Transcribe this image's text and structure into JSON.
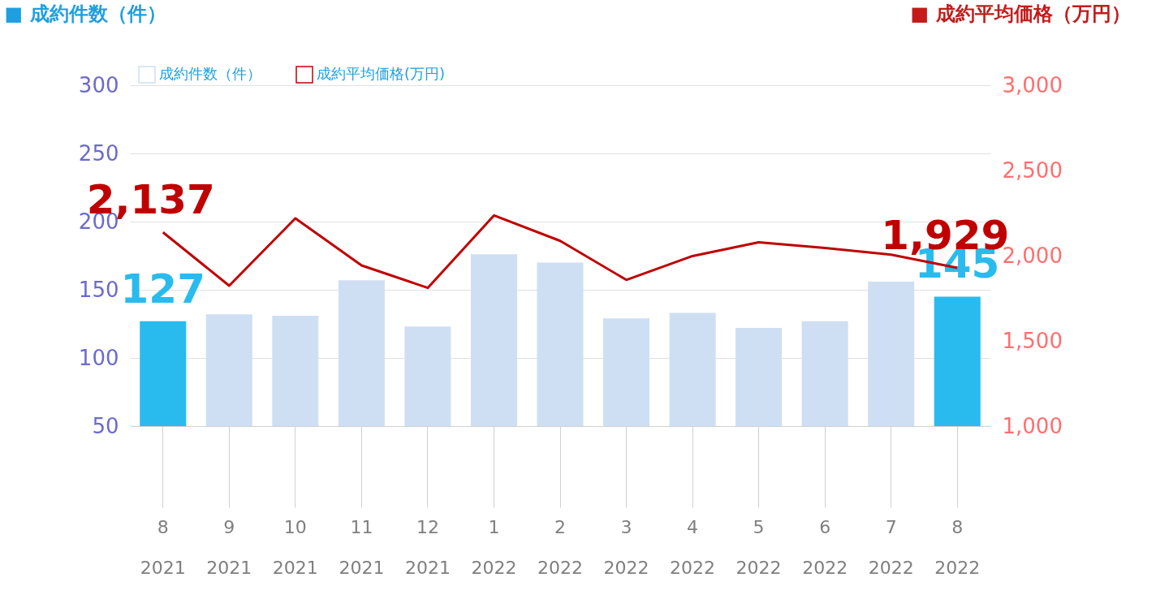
{
  "chart_data": {
    "type": "bar",
    "ylabel": "■ 成約件数（件）",
    "y2label": "■ 成約平均価格（万円）",
    "categories": [
      "8\n2021",
      "9\n2021",
      "10\n2021",
      "11\n2021",
      "12\n2021",
      "1\n2022",
      "2\n2022",
      "3\n2022",
      "4\n2022",
      "5\n2022",
      "6\n2022",
      "7\n2022",
      "8\n2022"
    ],
    "series": [
      {
        "name": "成約件数（件）",
        "color": "#cfdff3",
        "colors": [
          "#29bbee",
          "#cfdff3",
          "#cfdff3",
          "#cfdff3",
          "#cfdff3",
          "#cfdff3",
          "#cfdff3",
          "#cfdff3",
          "#cfdff3",
          "#cfdff3",
          "#cfdff3",
          "#cfdff3",
          "#29bbee"
        ],
        "values": [
          127,
          132,
          131,
          157,
          123,
          176,
          170,
          129,
          133,
          122,
          127,
          156,
          145
        ],
        "value_labels": [
          "127",
          null,
          null,
          null,
          null,
          null,
          null,
          null,
          null,
          null,
          null,
          null,
          "145"
        ]
      },
      {
        "name": "成約平均価格(万円)",
        "type": "line",
        "axis": "y2",
        "color": "#c00000",
        "values": [
          2137,
          1824,
          2219,
          1943,
          1811,
          2236,
          2087,
          1858,
          1998,
          2079,
          2045,
          2006,
          1929
        ],
        "value_labels": [
          "2,137",
          null,
          null,
          null,
          null,
          null,
          null,
          null,
          null,
          null,
          null,
          null,
          "1,929"
        ]
      }
    ],
    "ylim": [
      50,
      300
    ],
    "yticks": [
      50,
      100,
      150,
      200,
      250,
      300
    ],
    "y2lim": [
      1000,
      3000
    ],
    "y2ticks": [
      {
        "value": 1000,
        "label": "1,000"
      },
      {
        "value": 1500,
        "label": "1,500"
      },
      {
        "value": 2000,
        "label": "2,000"
      },
      {
        "value": 2500,
        "label": "2,500"
      },
      {
        "value": 3000,
        "label": "3,000"
      }
    ],
    "grid": "y",
    "legend": "top",
    "line_style": "solid",
    "marker": "none"
  }
}
